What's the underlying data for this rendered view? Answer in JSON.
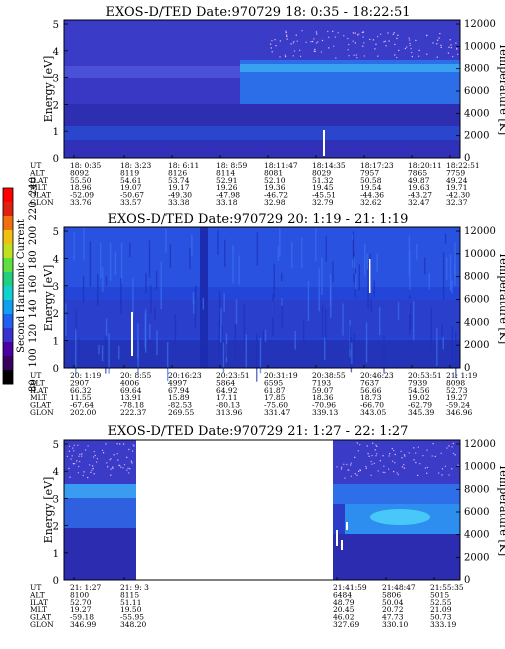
{
  "panels": [
    {
      "title": "EXOS-D/TED   Date:970729  18: 0:35 - 18:22:51",
      "ylabel": "Energy [eV]",
      "y2label": "Temperature [K]",
      "yticks": [
        "0",
        "1",
        "2",
        "3",
        "4",
        "5"
      ],
      "y2ticks": [
        "0",
        "2000",
        "4000",
        "6000",
        "8000",
        "10000",
        "12000"
      ],
      "rowlabels": [
        "UT",
        "ALT",
        "ILAT",
        "MLT",
        "GLAT",
        "GLON"
      ],
      "columns": [
        [
          "18: 0:35",
          "8092",
          "55.50",
          "18.96",
          "-52.09",
          "33.76"
        ],
        [
          "18: 3:23",
          "8119",
          "54.61",
          "19.07",
          "-50.67",
          "33.57"
        ],
        [
          "18: 6:11",
          "8126",
          "53.74",
          "19.17",
          "-49.30",
          "33.38"
        ],
        [
          "18: 8:59",
          "8114",
          "52.91",
          "19.26",
          "-47.98",
          "33.18"
        ],
        [
          "18:11:47",
          "8081",
          "52.10",
          "19.36",
          "-46.72",
          "32.98"
        ],
        [
          "18:14:35",
          "8029",
          "51.32",
          "19.45",
          "-45.51",
          "32.79"
        ],
        [
          "18:17:23",
          "7957",
          "50.58",
          "19.54",
          "-44.36",
          "32.62"
        ],
        [
          "18:20:11",
          "7865",
          "49.87",
          "19.63",
          "-43.27",
          "32.47"
        ],
        [
          "18:22:51",
          "7759",
          "49.24",
          "19.71",
          "-42.30",
          "32.37"
        ]
      ]
    },
    {
      "title": "EXOS-D/TED   Date:970729  20: 1:19 - 21: 1:19",
      "ylabel": "Energy [eV]",
      "y2label": "Temperature [K]",
      "yticks": [
        "0",
        "1",
        "2",
        "3",
        "4",
        "5"
      ],
      "y2ticks": [
        "0",
        "2000",
        "4000",
        "6000",
        "8000",
        "10000",
        "12000"
      ],
      "rowlabels": [
        "UT",
        "ALT",
        "ILAT",
        "MLT",
        "GLAT",
        "GLON"
      ],
      "columns": [
        [
          "20: 1:19",
          "2907",
          "66.32",
          "11.55",
          "-67.64",
          "202.00"
        ],
        [
          "20: 8:55",
          "4006",
          "69.64",
          "13.91",
          "-78.18",
          "222.37"
        ],
        [
          "20:16:23",
          "4997",
          "67.94",
          "15.89",
          "-82.53",
          "269.55"
        ],
        [
          "20:23:51",
          "5864",
          "64.92",
          "17.11",
          "-80.13",
          "313.96"
        ],
        [
          "20:31:19",
          "6595",
          "61.87",
          "17.85",
          "-75.60",
          "331.47"
        ],
        [
          "20:38:55",
          "7193",
          "59.07",
          "18.36",
          "-70.96",
          "339.13"
        ],
        [
          "20:46:23",
          "7637",
          "56.66",
          "18.73",
          "-66.70",
          "343.05"
        ],
        [
          "20:53:51",
          "7939",
          "54.56",
          "19.02",
          "-62.79",
          "345.39"
        ],
        [
          "21: 1:19",
          "8098",
          "52.73",
          "19.27",
          "-59.24",
          "346.96"
        ]
      ]
    },
    {
      "title": "EXOS-D/TED   Date:970729  21: 1:27 - 22: 1:27",
      "ylabel": "Energy [eV]",
      "y2label": "Temperature [K]",
      "yticks": [
        "0",
        "1",
        "2",
        "3",
        "4",
        "5"
      ],
      "y2ticks": [
        "0",
        "2000",
        "4000",
        "6000",
        "8000",
        "10000",
        "12000"
      ],
      "rowlabels": [
        "UT",
        "ALT",
        "ILAT",
        "MLT",
        "GLAT",
        "GLON"
      ],
      "columns": [
        [
          "21: 1:27",
          "8100",
          "52.70",
          "19.27",
          "-59.18",
          "346.99"
        ],
        [
          "21: 9: 3",
          "8115",
          "51.11",
          "19.50",
          "-55.95",
          "348.20"
        ],
        [
          "21:41:59",
          "6484",
          "48.79",
          "20.45",
          "46.02",
          "327.69"
        ],
        [
          "21:48:47",
          "5806",
          "50.04",
          "20.72",
          "47.73",
          "330.10"
        ],
        [
          "21:55:35",
          "5015",
          "52.55",
          "21.09",
          "50.73",
          "333.19"
        ]
      ]
    }
  ],
  "colorbar": {
    "label": "Second Harmonic Current",
    "ticks": [
      "80",
      "100",
      "120",
      "140",
      "160",
      "180",
      "200",
      "220",
      "240"
    ]
  },
  "chart_data": [
    {
      "type": "heatmap",
      "title": "EXOS-D/TED   Date:970729  18: 0:35 - 18:22:51",
      "ylabel": "Energy [eV]",
      "y2label": "Temperature [K]",
      "ylim": [
        0,
        5
      ],
      "y2lim": [
        0,
        12000
      ],
      "x_ticks": [
        "18: 0:35",
        "18: 3:23",
        "18: 6:11",
        "18: 8:59",
        "18:11:47",
        "18:14:35",
        "18:17:23",
        "18:20:11",
        "18:22:51"
      ],
      "colorbar_label": "Second Harmonic Current",
      "colorbar_range": [
        80,
        240
      ]
    },
    {
      "type": "heatmap",
      "title": "EXOS-D/TED   Date:970729  20: 1:19 - 21: 1:19",
      "ylabel": "Energy [eV]",
      "y2label": "Temperature [K]",
      "ylim": [
        0,
        5
      ],
      "y2lim": [
        0,
        12000
      ],
      "x_ticks": [
        "20: 1:19",
        "20: 8:55",
        "20:16:23",
        "20:23:51",
        "20:31:19",
        "20:38:55",
        "20:46:23",
        "20:53:51",
        "21: 1:19"
      ],
      "colorbar_label": "Second Harmonic Current",
      "colorbar_range": [
        80,
        240
      ]
    },
    {
      "type": "heatmap",
      "title": "EXOS-D/TED   Date:970729  21: 1:27 - 22: 1:27",
      "ylabel": "Energy [eV]",
      "y2label": "Temperature [K]",
      "ylim": [
        0,
        5
      ],
      "y2lim": [
        0,
        12000
      ],
      "x_ticks": [
        "21: 1:27",
        "21: 9: 3",
        "21:41:59",
        "21:48:47",
        "21:55:35"
      ],
      "colorbar_label": "Second Harmonic Current",
      "colorbar_range": [
        80,
        240
      ]
    }
  ]
}
